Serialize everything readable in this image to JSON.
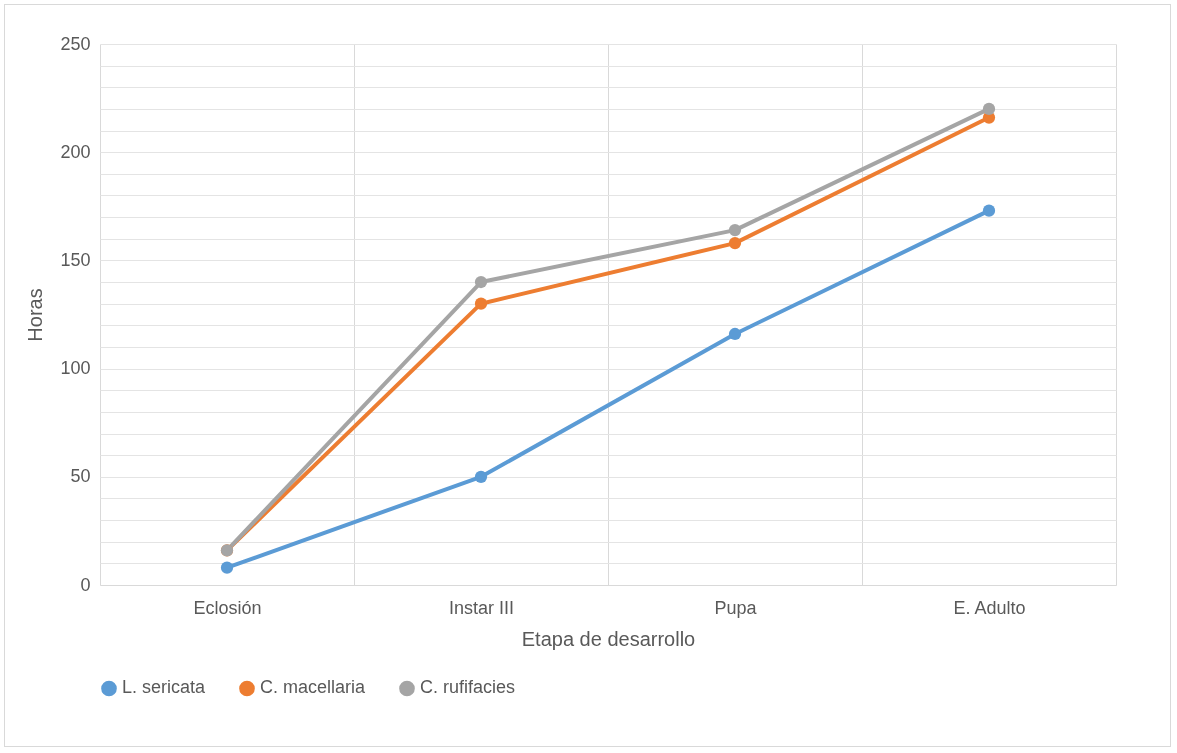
{
  "chart_data": {
    "type": "line",
    "xlabel": "Etapa de desarrollo",
    "ylabel": "Horas",
    "categories": [
      "Eclosión",
      "Instar III",
      "Pupa",
      "E. Adulto"
    ],
    "series": [
      {
        "name": "L. sericata",
        "color": "#5b9bd5",
        "values": [
          8,
          50,
          116,
          173
        ]
      },
      {
        "name": "C. macellaria",
        "color": "#ed7d31",
        "values": [
          16,
          130,
          158,
          216
        ]
      },
      {
        "name": "C. rufifacies",
        "color": "#a5a5a5",
        "values": [
          16,
          140,
          164,
          220
        ]
      }
    ],
    "ylim": [
      0,
      250
    ],
    "yticks": [
      0,
      {
        "value": 10,
        "label": null
      },
      {
        "value": 20,
        "label": null
      },
      {
        "value": 30,
        "label": null
      },
      {
        "value": 40,
        "label": null
      },
      50,
      {
        "value": 60,
        "label": null
      },
      {
        "value": 70,
        "label": null
      },
      {
        "value": 80,
        "label": null
      },
      {
        "value": 90,
        "label": null
      },
      100,
      {
        "value": 110,
        "label": null
      },
      {
        "value": 120,
        "label": null
      },
      {
        "value": 130,
        "label": null
      },
      {
        "value": 140,
        "label": null
      },
      150,
      {
        "value": 160,
        "label": null
      },
      {
        "value": 170,
        "label": null
      },
      {
        "value": 180,
        "label": null
      },
      {
        "value": 190,
        "label": null
      },
      200,
      {
        "value": 210,
        "label": null
      },
      {
        "value": 220,
        "label": null
      },
      {
        "value": 230,
        "label": null
      },
      {
        "value": 240,
        "label": null
      },
      250
    ],
    "grid": true,
    "legend": "bottom",
    "marker": "circle",
    "line_style": "solid"
  }
}
